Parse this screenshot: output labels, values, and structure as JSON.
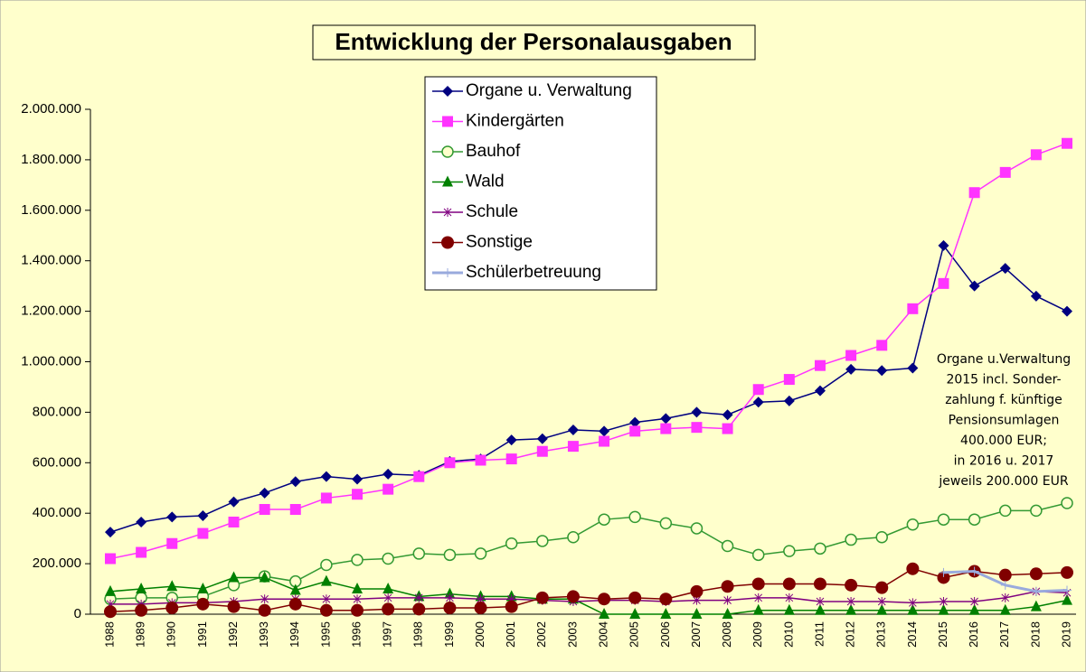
{
  "chart_data": {
    "type": "line",
    "title": "Entwicklung der Personalausgaben",
    "categories": [
      "1988",
      "1989",
      "1990",
      "1991",
      "1992",
      "1993",
      "1994",
      "1995",
      "1996",
      "1997",
      "1998",
      "1999",
      "2000",
      "2001",
      "2002",
      "2003",
      "2004",
      "2005",
      "2006",
      "2007",
      "2008",
      "2009",
      "2010",
      "2011",
      "2012",
      "2013",
      "2014",
      "2015",
      "2016",
      "2017",
      "2018",
      "2019"
    ],
    "series": [
      {
        "name": "Organe u. Verwaltung",
        "color": "#000080",
        "marker": "diamond",
        "values": [
          325000,
          365000,
          385000,
          390000,
          445000,
          480000,
          525000,
          545000,
          535000,
          555000,
          550000,
          605000,
          615000,
          690000,
          695000,
          730000,
          725000,
          760000,
          775000,
          800000,
          790000,
          840000,
          845000,
          885000,
          970000,
          965000,
          975000,
          1460000,
          1300000,
          1370000,
          1260000,
          1200000
        ]
      },
      {
        "name": "Kindergärten",
        "color": "#ff33ff",
        "marker": "square",
        "values": [
          220000,
          245000,
          280000,
          320000,
          365000,
          415000,
          415000,
          460000,
          475000,
          495000,
          545000,
          600000,
          610000,
          615000,
          645000,
          665000,
          685000,
          725000,
          735000,
          740000,
          735000,
          890000,
          930000,
          985000,
          1025000,
          1065000,
          1210000,
          1310000,
          1670000,
          1750000,
          1820000,
          1865000
        ]
      },
      {
        "name": "Bauhof",
        "color": "#339933",
        "marker": "circle-open",
        "values": [
          60000,
          65000,
          65000,
          70000,
          115000,
          150000,
          130000,
          195000,
          215000,
          220000,
          240000,
          235000,
          240000,
          280000,
          290000,
          305000,
          375000,
          385000,
          360000,
          340000,
          270000,
          235000,
          250000,
          260000,
          295000,
          305000,
          355000,
          375000,
          375000,
          410000,
          410000,
          440000
        ]
      },
      {
        "name": "Wald",
        "color": "#008000",
        "marker": "triangle",
        "values": [
          90000,
          100000,
          110000,
          100000,
          145000,
          145000,
          95000,
          130000,
          100000,
          100000,
          70000,
          80000,
          70000,
          70000,
          60000,
          60000,
          0,
          0,
          0,
          0,
          0,
          15000,
          15000,
          15000,
          15000,
          15000,
          15000,
          15000,
          15000,
          15000,
          30000,
          55000
        ]
      },
      {
        "name": "Schule",
        "color": "#800080",
        "marker": "star",
        "values": [
          40000,
          40000,
          45000,
          45000,
          50000,
          60000,
          60000,
          60000,
          60000,
          65000,
          65000,
          65000,
          60000,
          60000,
          55000,
          50000,
          55000,
          55000,
          50000,
          55000,
          55000,
          65000,
          65000,
          50000,
          50000,
          50000,
          45000,
          50000,
          50000,
          65000,
          90000,
          85000
        ]
      },
      {
        "name": "Sonstige",
        "color": "#800000",
        "marker": "circle",
        "values": [
          10000,
          15000,
          25000,
          40000,
          30000,
          15000,
          40000,
          15000,
          15000,
          20000,
          20000,
          25000,
          25000,
          30000,
          65000,
          70000,
          60000,
          65000,
          60000,
          90000,
          110000,
          120000,
          120000,
          120000,
          115000,
          105000,
          180000,
          145000,
          170000,
          155000,
          160000,
          165000
        ]
      },
      {
        "name": "Schülerbetreuung",
        "color": "#99aadd",
        "marker": "plus",
        "values": [
          null,
          null,
          null,
          null,
          null,
          null,
          null,
          null,
          null,
          null,
          null,
          null,
          null,
          null,
          null,
          null,
          null,
          null,
          null,
          null,
          null,
          null,
          null,
          null,
          null,
          null,
          null,
          165000,
          170000,
          115000,
          90000,
          95000
        ]
      }
    ],
    "ylim": [
      0,
      2000000
    ],
    "yticks": [
      0,
      {
        "value": 200000,
        "label": "200.000"
      },
      {
        "value": 400000,
        "label": "400.000"
      },
      {
        "value": 600000,
        "label": "600.000"
      },
      {
        "value": 800000,
        "label": "800.000"
      },
      {
        "value": 1000000,
        "label": "1.000.000"
      },
      {
        "value": 1200000,
        "label": "1.200.000"
      },
      {
        "value": 1400000,
        "label": "1.400.000"
      },
      {
        "value": 1600000,
        "label": "1.600.000"
      },
      {
        "value": 1800000,
        "label": "1.800.000"
      },
      {
        "value": 2000000,
        "label": "2.000.000"
      }
    ],
    "annotation": [
      "Organe u.Verwaltung",
      "2015 incl. Sonder-",
      "zahlung f. künftige",
      "Pensionsumlagen",
      "400.000 EUR;",
      "in 2016 u. 2017",
      "jeweils 200.000 EUR"
    ]
  }
}
